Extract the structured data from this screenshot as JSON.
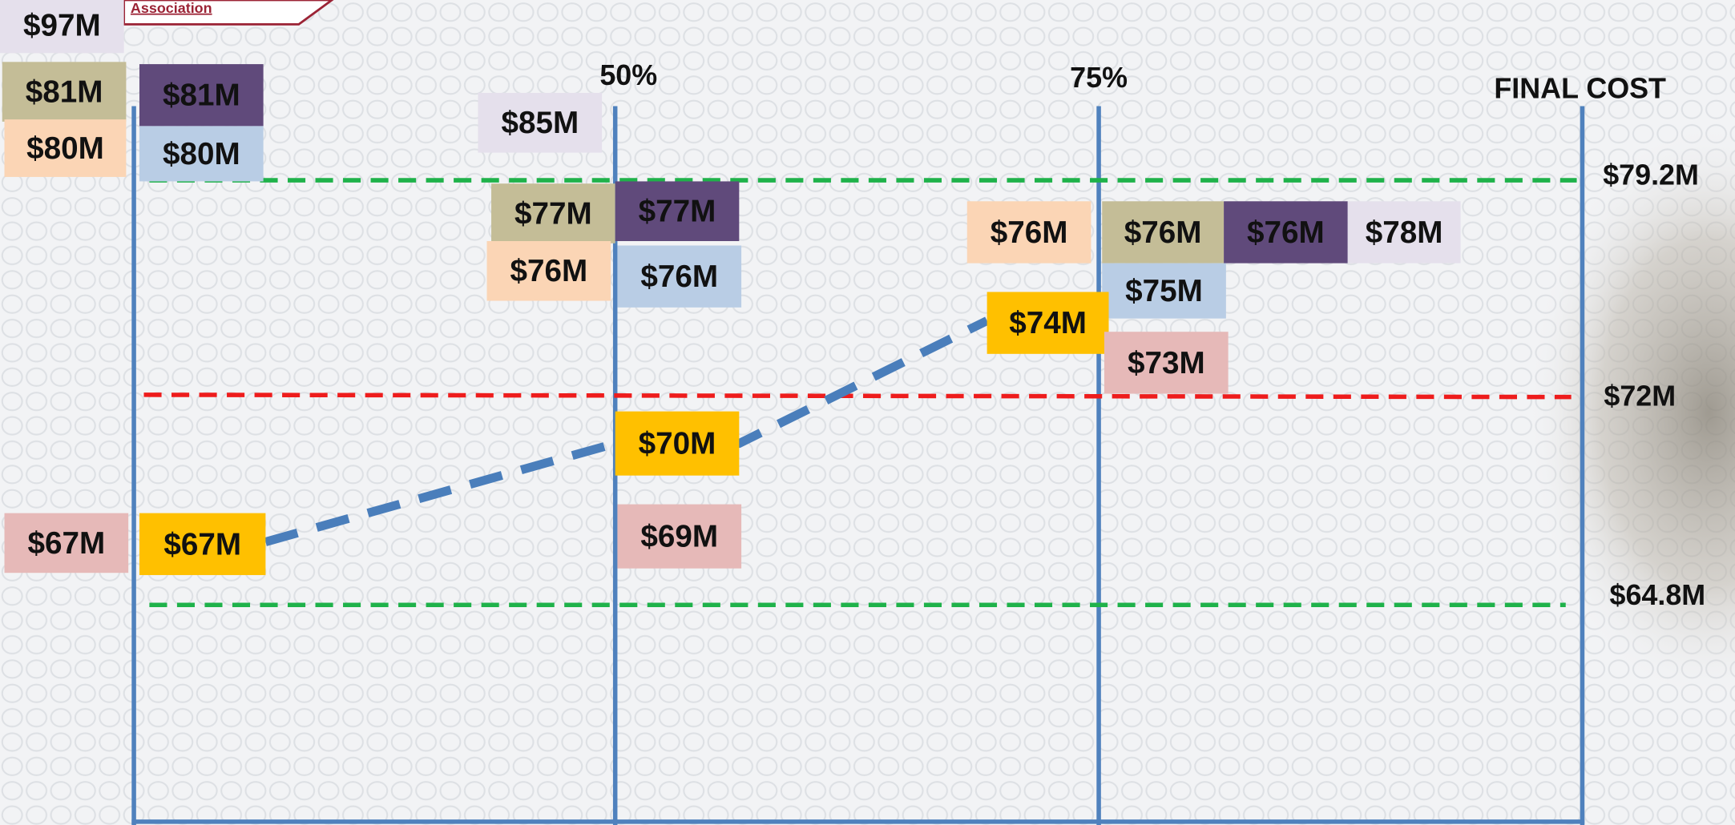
{
  "header": {
    "logo_text": "Association"
  },
  "columns": [
    "50%",
    "75%",
    "FINAL COST"
  ],
  "reference_lines": [
    "$79.2M",
    "$72M",
    "$64.8M"
  ],
  "estimates": [
    "$97M",
    "$81M",
    "$80M",
    "$81M",
    "$80M",
    "$85M",
    "$77M",
    "$77M",
    "$76M",
    "$76M",
    "$76M",
    "$76M",
    "$76M",
    "$78M",
    "$75M",
    "$74M",
    "$73M",
    "$70M",
    "$69M",
    "$67M",
    "$67M"
  ]
}
